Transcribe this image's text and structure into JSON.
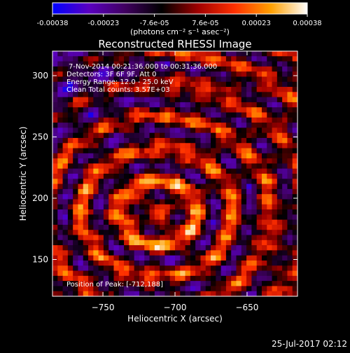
{
  "colorbar": {
    "stops": [
      "#0000ff",
      "#5a00c0",
      "#400060",
      "#000000",
      "#a00000",
      "#ff3000",
      "#ffa000",
      "#ffffff"
    ],
    "tick_labels": [
      "-0.00038",
      "-0.00023",
      "-7.6e-05",
      "7.6e-05",
      "0.00023",
      "0.00038"
    ],
    "units_label": "(photons cm⁻² s⁻¹ asec⁻²)"
  },
  "chart_data": {
    "type": "heatmap",
    "title": "Reconstructed RHESSI Image",
    "xlabel": "Heliocentric X (arcsec)",
    "ylabel": "Heliocentric Y (arcsec)",
    "xlim": [
      -785,
      -615
    ],
    "ylim": [
      120,
      320
    ],
    "xticks": [
      -750,
      -700,
      -650
    ],
    "yticks": [
      150,
      200,
      250,
      300
    ],
    "value_range": [
      -0.00038,
      0.00038
    ],
    "annotations": [
      "7-Nov-2014 00:21:36.000 to 00:31:36.000",
      "Detectors: 3F 6F 9F, Att 0",
      "Energy Range: 12.0 - 25.0 keV",
      "Clean    Total counts: 3.57E+03"
    ],
    "peak_label": "Position of Peak:  [-712,188]",
    "peak": [
      -712,
      188
    ]
  },
  "footer": {
    "date": "25-Jul-2017 02:12"
  }
}
